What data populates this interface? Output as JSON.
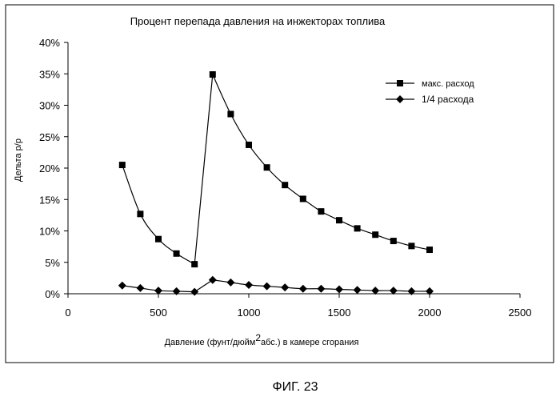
{
  "chart_data": {
    "type": "line",
    "title": "Процент перепада давления на инжекторах топлива",
    "xlabel_pre": "Давление (фунт/дюйм",
    "xlabel_sup": "2",
    "xlabel_post": "абс.) в камере сгорания",
    "ylabel": "Дельта р/р",
    "xlim": [
      0,
      2500
    ],
    "ylim": [
      0,
      40
    ],
    "x_ticks": [
      "0",
      "500",
      "1000",
      "1500",
      "2000",
      "2500"
    ],
    "y_ticks": [
      "0%",
      "5%",
      "10%",
      "15%",
      "20%",
      "25%",
      "30%",
      "35%",
      "40%"
    ],
    "grid": false,
    "legend_position": "top-right",
    "series": [
      {
        "name": "макс. расход",
        "marker": "square",
        "x": [
          300,
          400,
          500,
          600,
          700,
          800,
          900,
          1000,
          1100,
          1200,
          1300,
          1400,
          1500,
          1600,
          1700,
          1800,
          1900,
          2000
        ],
        "y": [
          20.5,
          12.7,
          8.7,
          6.4,
          4.7,
          34.9,
          28.6,
          23.7,
          20.1,
          17.3,
          15.1,
          13.1,
          11.7,
          10.4,
          9.4,
          8.4,
          7.6,
          7.0
        ]
      },
      {
        "name": "1/4 расхода",
        "marker": "diamond",
        "x": [
          300,
          400,
          500,
          600,
          700,
          800,
          900,
          1000,
          1100,
          1200,
          1300,
          1400,
          1500,
          1600,
          1700,
          1800,
          1900,
          2000
        ],
        "y": [
          1.3,
          0.9,
          0.5,
          0.4,
          0.3,
          2.2,
          1.8,
          1.4,
          1.2,
          1.0,
          0.8,
          0.8,
          0.7,
          0.6,
          0.5,
          0.5,
          0.4,
          0.4
        ]
      }
    ]
  },
  "figure_caption": "ФИГ. 23"
}
